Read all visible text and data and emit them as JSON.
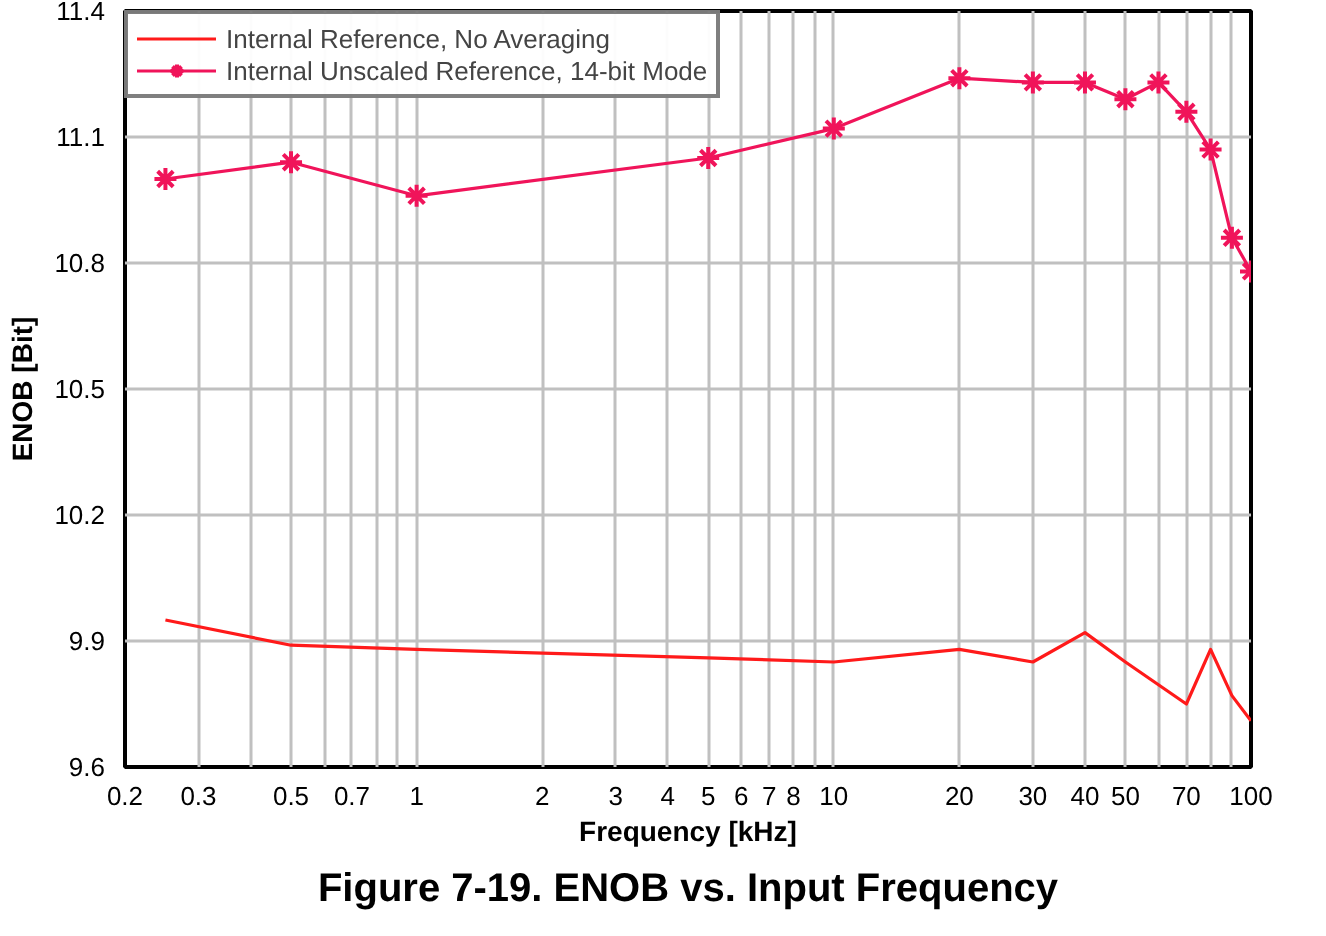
{
  "chart_data": {
    "type": "line",
    "title": "Figure 7-19. ENOB vs. Input Frequency",
    "xlabel": "Frequency [kHz]",
    "ylabel": "ENOB [Bit]",
    "log": "x",
    "grid": true,
    "legend": "top left",
    "xlim": [
      0.2,
      100
    ],
    "ylim": [
      9.6,
      11.4
    ],
    "xticks": [
      0.2,
      0.3,
      {
        "value": 0.4,
        "label": null
      },
      0.5,
      {
        "value": 0.6,
        "label": null
      },
      0.7,
      {
        "value": 0.8,
        "label": null
      },
      {
        "value": 0.9,
        "label": null
      },
      1,
      2,
      3,
      4,
      5,
      6,
      7,
      8,
      {
        "value": 9,
        "label": null
      },
      10,
      20,
      30,
      40,
      50,
      {
        "value": 60,
        "label": null
      },
      70,
      {
        "value": 80,
        "label": null
      },
      {
        "value": 90,
        "label": null
      },
      100
    ],
    "yticks": [
      9.6,
      9.9,
      10.2,
      10.5,
      10.8,
      11.1,
      11.4
    ],
    "series": [
      {
        "name": "Internal Reference, No Averaging",
        "color": "#ff1a1a",
        "marker": "none",
        "x": [
          0.25,
          0.5,
          1,
          5,
          10,
          20,
          30,
          40,
          50,
          70,
          80,
          90,
          100
        ],
        "values": [
          9.95,
          9.89,
          9.88,
          9.86,
          9.85,
          9.88,
          9.85,
          9.92,
          9.85,
          9.75,
          9.88,
          9.77,
          9.71
        ]
      },
      {
        "name": "Internal Unscaled Reference, 14-bit Mode",
        "color": "#f0145a",
        "marker": "cross",
        "x": [
          0.25,
          0.5,
          1,
          5,
          10,
          20,
          30,
          40,
          50,
          60,
          70,
          80,
          90,
          100
        ],
        "values": [
          11.0,
          11.04,
          10.96,
          11.05,
          11.12,
          11.24,
          11.23,
          11.23,
          11.19,
          11.23,
          11.16,
          11.07,
          10.86,
          10.78
        ]
      }
    ]
  }
}
